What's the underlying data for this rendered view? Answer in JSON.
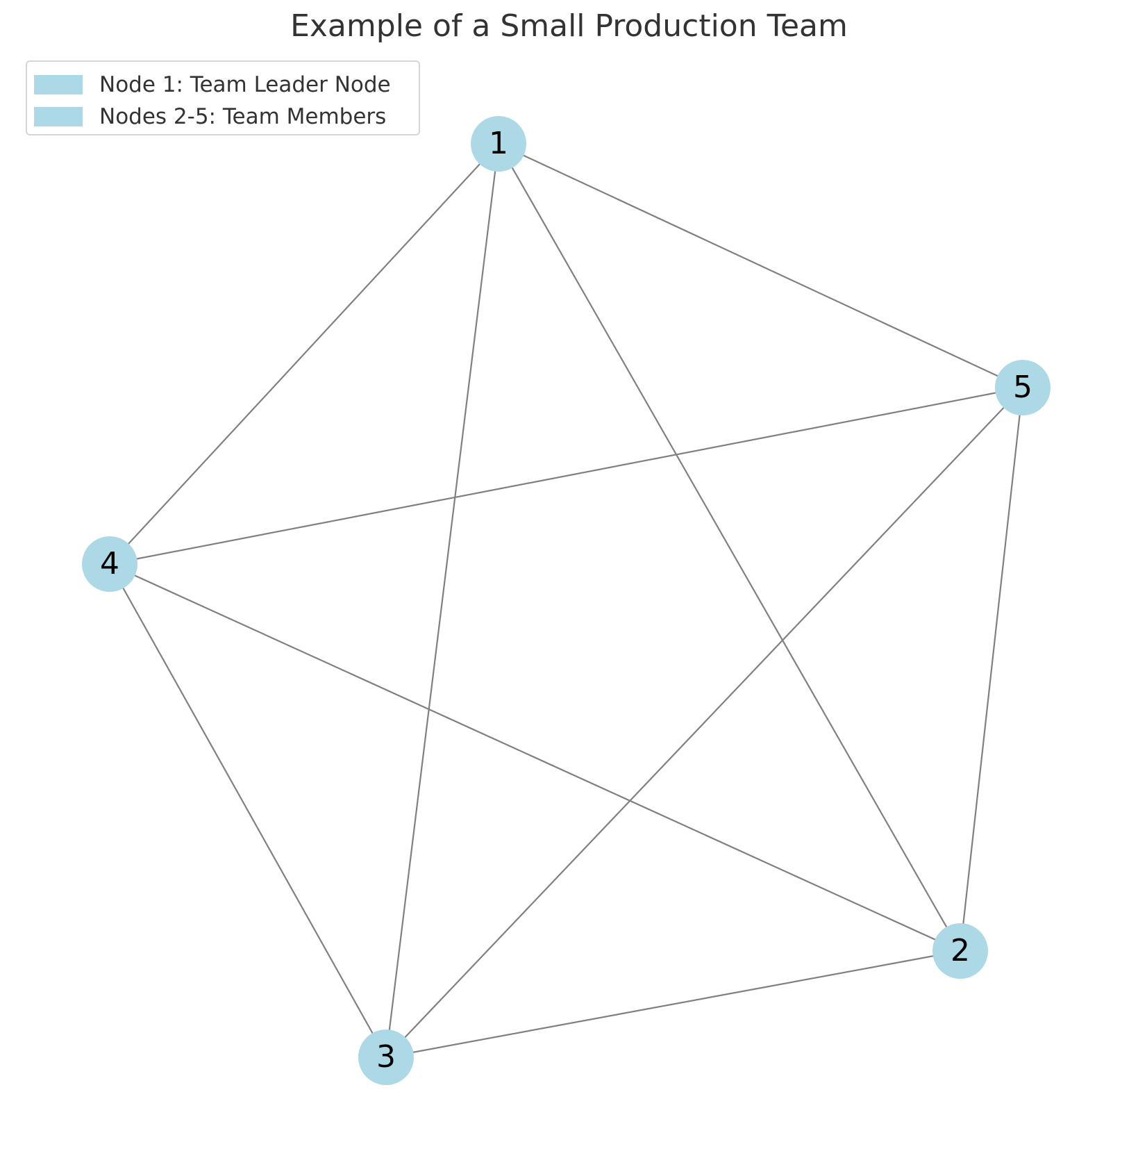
{
  "title": "Example of a Small Production Team",
  "legend": [
    {
      "label": "Node 1: Team Leader Node",
      "color": "#add8e6"
    },
    {
      "label": "Nodes 2-5: Team Members",
      "color": "#add8e6"
    }
  ],
  "colors": {
    "node": "#add8e6",
    "edge": "#808080",
    "label": "#000000",
    "title": "#333333"
  },
  "nodes": [
    {
      "id": "1"
    },
    {
      "id": "2"
    },
    {
      "id": "3"
    },
    {
      "id": "4"
    },
    {
      "id": "5"
    }
  ],
  "edges": [
    [
      "1",
      "4"
    ],
    [
      "1",
      "3"
    ],
    [
      "1",
      "2"
    ],
    [
      "1",
      "5"
    ],
    [
      "5",
      "4"
    ],
    [
      "5",
      "3"
    ],
    [
      "5",
      "2"
    ],
    [
      "4",
      "3"
    ],
    [
      "4",
      "2"
    ],
    [
      "3",
      "2"
    ]
  ]
}
